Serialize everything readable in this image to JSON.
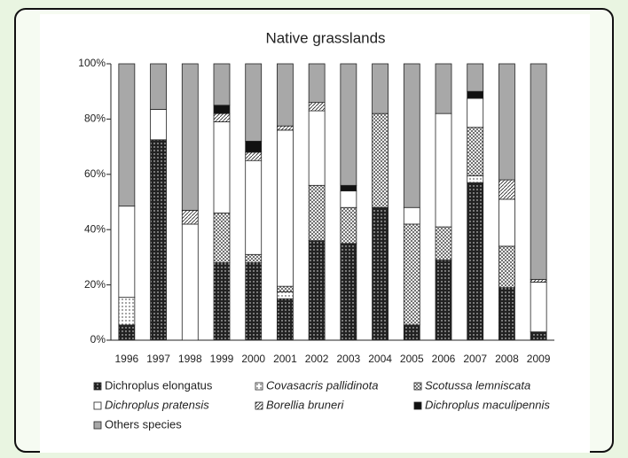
{
  "chart_data": {
    "type": "stacked-bar",
    "title": "Native grasslands",
    "categories": [
      "1996",
      "1997",
      "1998",
      "1999",
      "2000",
      "2001",
      "2002",
      "2003",
      "2004",
      "2005",
      "2006",
      "2007",
      "2008",
      "2009"
    ],
    "ylim": [
      0,
      100
    ],
    "yticks": [
      {
        "value": 0,
        "label": "0%"
      },
      {
        "value": 20,
        "label": "20%"
      },
      {
        "value": 40,
        "label": "40%"
      },
      {
        "value": 60,
        "label": "60%"
      },
      {
        "value": 80,
        "label": "80%"
      },
      {
        "value": 100,
        "label": "100%"
      }
    ],
    "series": [
      {
        "name": "Dichroplus elongatus",
        "color": "#222222",
        "pattern": "dots",
        "italic": false,
        "values": [
          5.5,
          72.5,
          0,
          28,
          28,
          15,
          36,
          35,
          48,
          5.5,
          29,
          57,
          19,
          3
        ]
      },
      {
        "name": "Covasacris pallidinota",
        "color": "#ffffff",
        "pattern": "dots",
        "italic": true,
        "values": [
          10,
          0,
          0,
          0,
          0,
          2.5,
          0,
          0,
          0,
          0,
          0,
          2.5,
          0,
          0
        ]
      },
      {
        "name": "Scotussa lemniscata",
        "color": "#ffffff",
        "pattern": "crosshatch",
        "italic": true,
        "values": [
          0,
          0,
          0,
          18,
          3,
          2,
          20,
          13,
          34,
          36.5,
          12,
          17.5,
          15,
          0
        ]
      },
      {
        "name": "Dichroplus pratensis",
        "color": "#ffffff",
        "pattern": "none",
        "italic": true,
        "values": [
          33,
          11,
          42,
          33,
          34,
          56.5,
          27,
          6,
          0,
          6,
          41,
          10.5,
          17,
          18
        ]
      },
      {
        "name": "Borellia bruneri",
        "color": "#ffffff",
        "pattern": "hatch",
        "italic": true,
        "values": [
          0,
          0,
          5,
          3,
          3,
          1.5,
          3,
          0,
          0,
          0,
          0,
          0,
          7,
          1
        ]
      },
      {
        "name": "Dichroplus maculipennis",
        "color": "#111111",
        "pattern": "none",
        "italic": true,
        "values": [
          0,
          0,
          0,
          3,
          4,
          0,
          0,
          2,
          0,
          0,
          0,
          2.5,
          0,
          0
        ]
      },
      {
        "name": "Others species",
        "color": "#a8a8a8",
        "pattern": "none",
        "italic": false,
        "values": [
          51.5,
          16.5,
          53,
          15,
          28,
          22.5,
          14,
          44,
          18,
          52,
          18,
          10,
          42,
          78
        ]
      }
    ]
  }
}
